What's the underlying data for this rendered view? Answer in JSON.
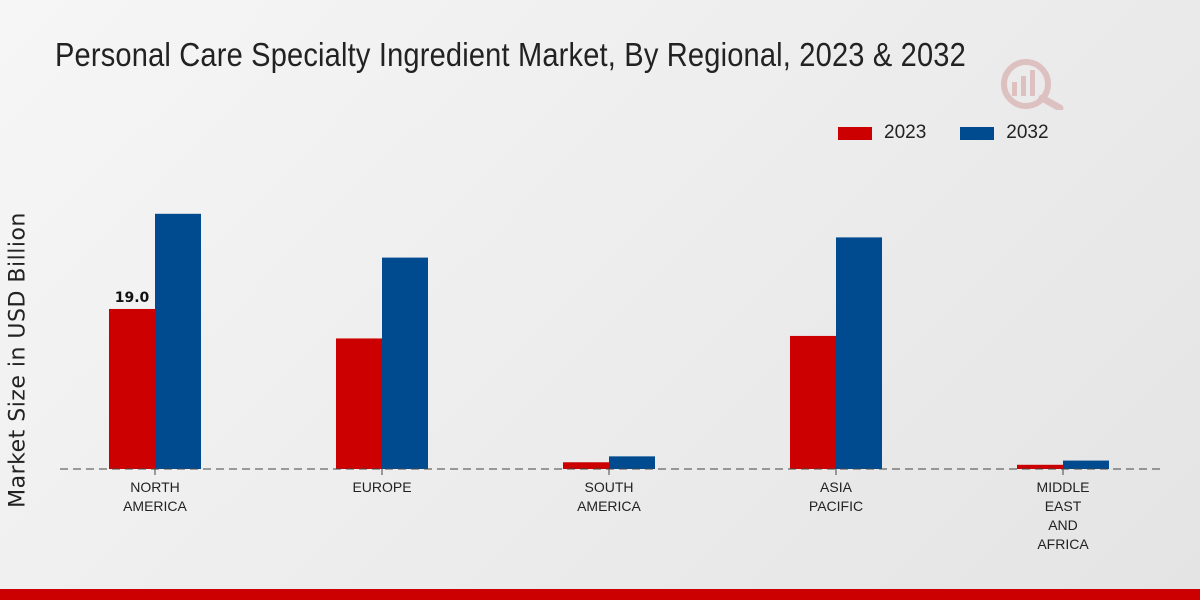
{
  "chart_data": {
    "type": "bar",
    "title": "Personal Care Specialty Ingredient Market, By Regional, 2023 & 2032",
    "xlabel": "",
    "ylabel": "Market Size in USD Billion",
    "categories": [
      [
        "NORTH",
        "AMERICA"
      ],
      [
        "EUROPE"
      ],
      [
        "SOUTH",
        "AMERICA"
      ],
      [
        "ASIA",
        "PACIFIC"
      ],
      [
        "MIDDLE",
        "EAST",
        "AND",
        "AFRICA"
      ]
    ],
    "series": [
      {
        "name": "2023",
        "color": "#cc0000",
        "values": [
          19.0,
          15.5,
          0.8,
          15.8,
          0.5
        ]
      },
      {
        "name": "2032",
        "color": "#004a8f",
        "values": [
          30.3,
          25.1,
          1.5,
          27.5,
          1.0
        ]
      }
    ],
    "data_labels": [
      {
        "series": 0,
        "index": 0,
        "text": "19.0"
      }
    ],
    "ylim": [
      0,
      45
    ],
    "grid": false,
    "legend_position": "top-right"
  }
}
